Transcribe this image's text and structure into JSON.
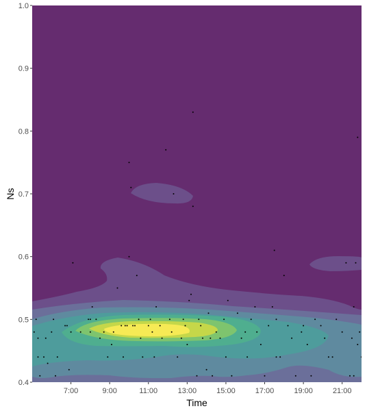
{
  "chart_data": {
    "type": "density2d_filled",
    "title": "",
    "xlabel": "Time",
    "ylabel": "Ns",
    "xlim_hours": [
      5.0,
      22.0
    ],
    "ylim": [
      0.4,
      1.0
    ],
    "x_ticks": [
      {
        "value": 7,
        "label": "7:00"
      },
      {
        "value": 9,
        "label": "9:00"
      },
      {
        "value": 11,
        "label": "11:00"
      },
      {
        "value": 13,
        "label": "13:00"
      },
      {
        "value": 15,
        "label": "15:00"
      },
      {
        "value": 17,
        "label": "17:00"
      },
      {
        "value": 19,
        "label": "19:00"
      },
      {
        "value": 21,
        "label": "21:00"
      }
    ],
    "y_ticks": [
      {
        "value": 0.4,
        "label": "0.4"
      },
      {
        "value": 0.5,
        "label": "0.5"
      },
      {
        "value": 0.6,
        "label": "0.6"
      },
      {
        "value": 0.7,
        "label": "0.7"
      },
      {
        "value": 0.8,
        "label": "0.8"
      },
      {
        "value": 0.9,
        "label": "0.9"
      },
      {
        "value": 1.0,
        "label": "1.0"
      }
    ],
    "fill_levels": [
      "#652c6f",
      "#6c4f8a",
      "#6b6f9a",
      "#5f8a9f",
      "#4e9c9c",
      "#4fae8f",
      "#7ec46e",
      "#c5d749",
      "#f6ea55"
    ],
    "grid": false,
    "legend": "none",
    "points": [
      [
        5.1,
        0.48
      ],
      [
        5.2,
        0.5
      ],
      [
        5.3,
        0.47
      ],
      [
        5.3,
        0.44
      ],
      [
        5.4,
        0.41
      ],
      [
        5.6,
        0.44
      ],
      [
        5.7,
        0.47
      ],
      [
        5.8,
        0.43
      ],
      [
        6.0,
        0.48
      ],
      [
        6.1,
        0.5
      ],
      [
        6.2,
        0.41
      ],
      [
        6.3,
        0.44
      ],
      [
        6.7,
        0.49
      ],
      [
        6.8,
        0.49
      ],
      [
        6.9,
        0.42
      ],
      [
        7.0,
        0.48
      ],
      [
        7.1,
        0.59
      ],
      [
        7.5,
        0.48
      ],
      [
        7.9,
        0.5
      ],
      [
        8.0,
        0.5
      ],
      [
        8.0,
        0.48
      ],
      [
        8.1,
        0.52
      ],
      [
        8.3,
        0.5
      ],
      [
        8.5,
        0.47
      ],
      [
        8.7,
        0.48
      ],
      [
        8.9,
        0.44
      ],
      [
        9.1,
        0.46
      ],
      [
        9.2,
        0.48
      ],
      [
        9.4,
        0.55
      ],
      [
        9.6,
        0.49
      ],
      [
        9.7,
        0.44
      ],
      [
        9.8,
        0.49
      ],
      [
        9.9,
        0.49
      ],
      [
        10.0,
        0.6
      ],
      [
        10.0,
        0.75
      ],
      [
        10.1,
        0.71
      ],
      [
        10.2,
        0.49
      ],
      [
        10.3,
        0.49
      ],
      [
        10.4,
        0.57
      ],
      [
        10.5,
        0.5
      ],
      [
        10.6,
        0.47
      ],
      [
        10.7,
        0.44
      ],
      [
        11.0,
        0.49
      ],
      [
        11.1,
        0.5
      ],
      [
        11.2,
        0.48
      ],
      [
        11.3,
        0.44
      ],
      [
        11.4,
        0.52
      ],
      [
        11.6,
        0.49
      ],
      [
        11.7,
        0.47
      ],
      [
        11.9,
        0.77
      ],
      [
        12.1,
        0.5
      ],
      [
        12.2,
        0.48
      ],
      [
        12.3,
        0.7
      ],
      [
        12.5,
        0.44
      ],
      [
        12.7,
        0.47
      ],
      [
        12.8,
        0.5
      ],
      [
        12.9,
        0.49
      ],
      [
        13.0,
        0.46
      ],
      [
        13.1,
        0.53
      ],
      [
        13.2,
        0.54
      ],
      [
        13.3,
        0.83
      ],
      [
        13.3,
        0.68
      ],
      [
        13.5,
        0.41
      ],
      [
        13.6,
        0.5
      ],
      [
        13.7,
        0.49
      ],
      [
        13.8,
        0.47
      ],
      [
        14.0,
        0.42
      ],
      [
        14.1,
        0.51
      ],
      [
        14.3,
        0.41
      ],
      [
        14.5,
        0.48
      ],
      [
        14.7,
        0.47
      ],
      [
        14.9,
        0.5
      ],
      [
        15.0,
        0.44
      ],
      [
        15.1,
        0.53
      ],
      [
        15.3,
        0.41
      ],
      [
        15.6,
        0.51
      ],
      [
        15.8,
        0.47
      ],
      [
        16.0,
        0.48
      ],
      [
        16.1,
        0.44
      ],
      [
        16.3,
        0.5
      ],
      [
        16.6,
        0.48
      ],
      [
        16.8,
        0.46
      ],
      [
        17.0,
        0.41
      ],
      [
        17.2,
        0.49
      ],
      [
        17.4,
        0.52
      ],
      [
        17.5,
        0.61
      ],
      [
        17.6,
        0.5
      ],
      [
        17.6,
        0.44
      ],
      [
        17.8,
        0.44
      ],
      [
        18.0,
        0.57
      ],
      [
        18.2,
        0.49
      ],
      [
        18.4,
        0.47
      ],
      [
        18.6,
        0.41
      ],
      [
        18.9,
        0.48
      ],
      [
        19.2,
        0.46
      ],
      [
        19.4,
        0.41
      ],
      [
        19.6,
        0.5
      ],
      [
        19.9,
        0.49
      ],
      [
        20.1,
        0.47
      ],
      [
        20.3,
        0.44
      ],
      [
        20.5,
        0.44
      ],
      [
        20.7,
        0.5
      ],
      [
        21.0,
        0.48
      ],
      [
        21.2,
        0.59
      ],
      [
        21.4,
        0.41
      ],
      [
        21.5,
        0.47
      ],
      [
        21.6,
        0.52
      ],
      [
        21.7,
        0.59
      ],
      [
        21.8,
        0.46
      ],
      [
        21.9,
        0.48
      ],
      [
        22.0,
        0.44
      ],
      [
        21.8,
        0.79
      ],
      [
        21.6,
        0.41
      ],
      [
        16.5,
        0.52
      ],
      [
        19.0,
        0.49
      ],
      [
        14.2,
        0.47
      ]
    ]
  }
}
